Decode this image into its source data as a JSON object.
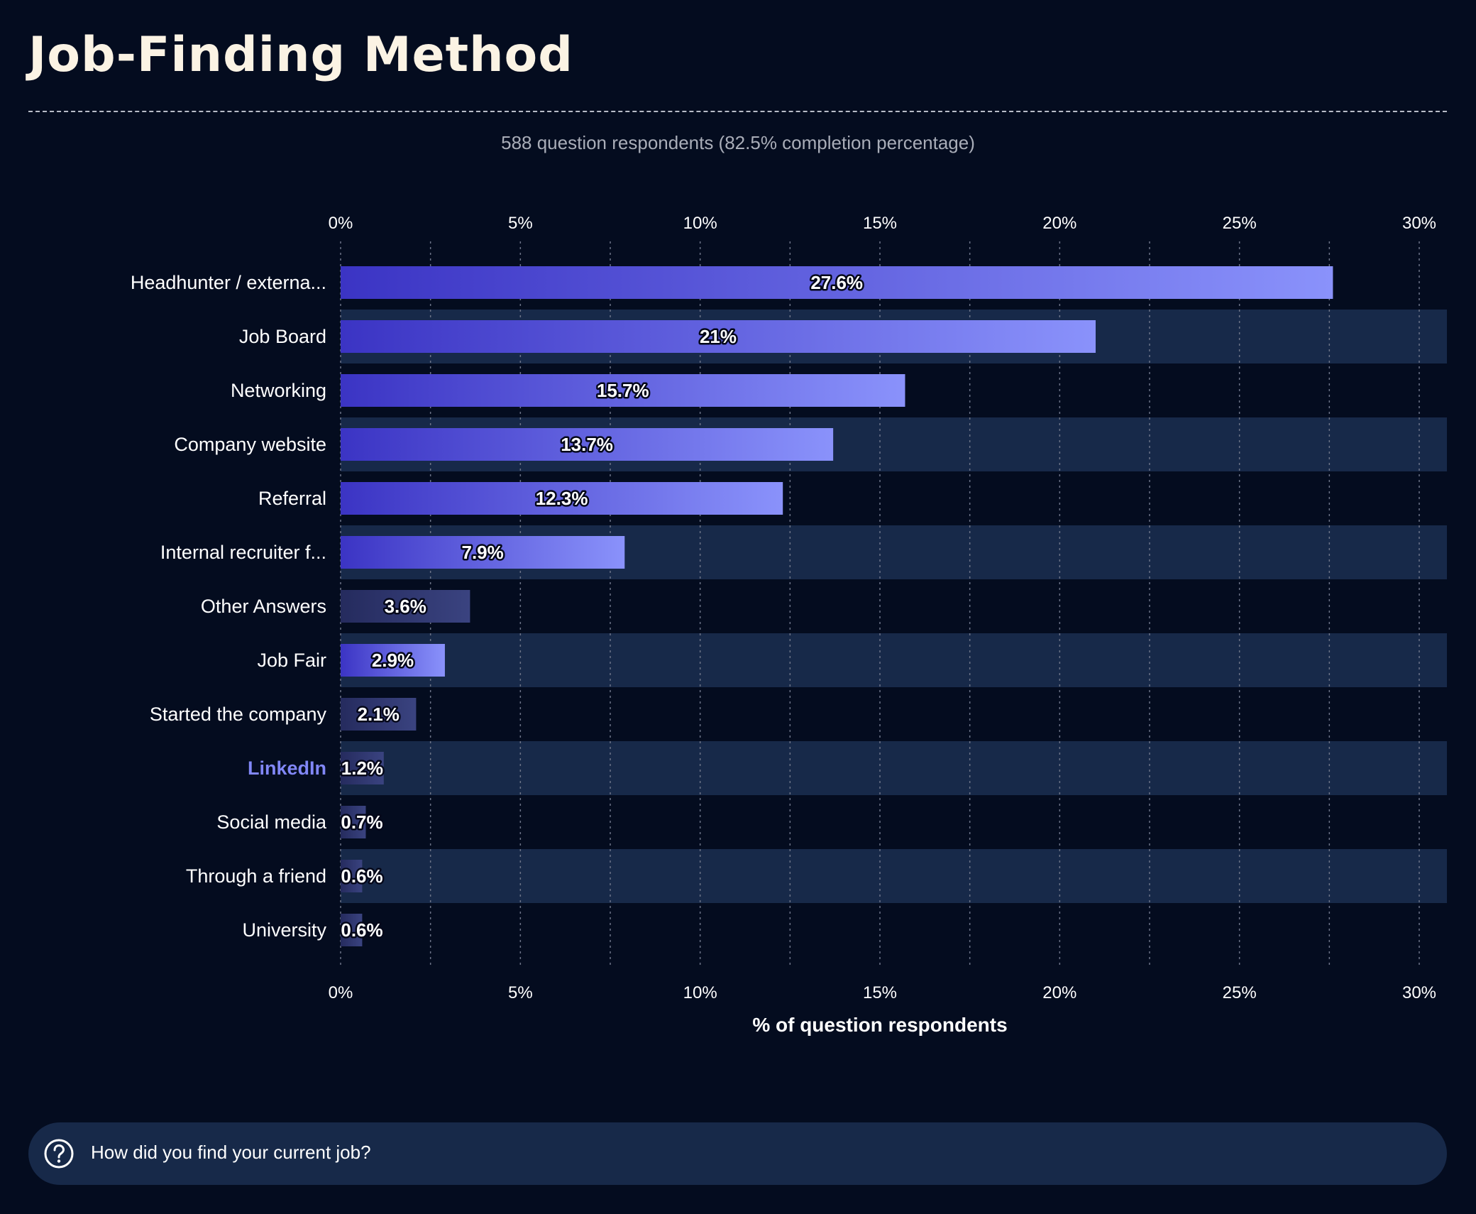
{
  "title": "Job-Finding Method",
  "subtitle": "588 question respondents (82.5% completion percentage)",
  "footer": {
    "question": "How did you find your current job?",
    "icon": "question-circle-icon"
  },
  "colors": {
    "background": "#040c1f",
    "band": "#172949",
    "bar_start": "#3b34c4",
    "bar_end": "#8a92fb",
    "muted_bar_start": "#252b5e",
    "muted_bar_end": "#3a4380",
    "highlight_label": "#8187f7",
    "title": "#fbf3e4"
  },
  "chart_data": {
    "type": "bar",
    "orientation": "horizontal",
    "xlabel": "% of question respondents",
    "ylabel": "",
    "xlim": [
      0,
      30.8
    ],
    "xticks": [
      0,
      5,
      10,
      15,
      20,
      25,
      30
    ],
    "xtick_labels": [
      "0%",
      "5%",
      "10%",
      "15%",
      "20%",
      "25%",
      "30%"
    ],
    "grid": "vertical dotted",
    "categories": [
      "Headhunter / externa...",
      "Job Board",
      "Networking",
      "Company website",
      "Referral",
      "Internal recruiter f...",
      "Other Answers",
      "Job Fair",
      "Started the company",
      "LinkedIn",
      "Social media",
      "Through a friend",
      "University"
    ],
    "values": [
      27.6,
      21,
      15.7,
      13.7,
      12.3,
      7.9,
      3.6,
      2.9,
      2.1,
      1.2,
      0.7,
      0.6,
      0.6
    ],
    "value_labels": [
      "27.6%",
      "21%",
      "15.7%",
      "13.7%",
      "12.3%",
      "7.9%",
      "3.6%",
      "2.9%",
      "2.1%",
      "1.2%",
      "0.7%",
      "0.6%",
      "0.6%"
    ],
    "highlighted": "LinkedIn",
    "muted": [
      "Other Answers",
      "Started the company",
      "LinkedIn",
      "Social media",
      "Through a friend",
      "University"
    ]
  }
}
